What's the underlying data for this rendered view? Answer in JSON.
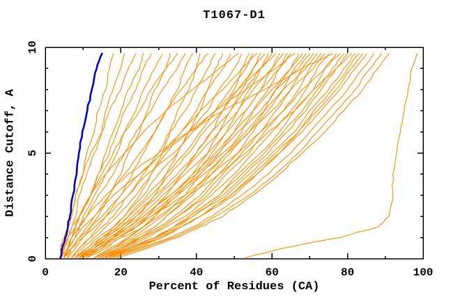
{
  "chart_data": {
    "type": "line",
    "title": "T1067-D1",
    "xlabel": "Percent of Residues (CA)",
    "ylabel": "Distance Cutoff, A",
    "xlim": [
      0,
      100
    ],
    "ylim": [
      0,
      10
    ],
    "grid": false,
    "legend": "none",
    "x_major_ticks": [
      0,
      20,
      40,
      60,
      80,
      100
    ],
    "x_minor_ticks": [
      10,
      30,
      50,
      70,
      90
    ],
    "y_major_ticks": [
      0,
      5,
      10
    ],
    "y_minor_ticks": [
      1,
      2,
      3,
      4,
      6,
      7,
      8,
      9
    ],
    "colors": {
      "models": "#ff8c00",
      "highlight": "#0000cd",
      "frame": "#000000",
      "background": "#ffffff"
    },
    "cutoffs": [
      0.05,
      0.5,
      1,
      1.5,
      2,
      3,
      4,
      5,
      6,
      7,
      8,
      9,
      9.7
    ],
    "highlight_series": {
      "name": "highlighted-model",
      "percents": [
        4,
        4.5,
        5.3,
        6,
        6.5,
        7.3,
        8.3,
        8.9,
        9.8,
        11.1,
        12.3,
        13.6,
        15
      ]
    },
    "model_series": [
      [
        4,
        5,
        5,
        6,
        7,
        8,
        10,
        11,
        13,
        14,
        16,
        17,
        18
      ],
      [
        4,
        5,
        6,
        7,
        8,
        9,
        11,
        13,
        15,
        16,
        18,
        20,
        21
      ],
      [
        4,
        4,
        5,
        6,
        7,
        8,
        10,
        12,
        15,
        17,
        20,
        22,
        24
      ],
      [
        5,
        6,
        7,
        8,
        9,
        12,
        14,
        16,
        18,
        20,
        22,
        25,
        26
      ],
      [
        5,
        5,
        6,
        8,
        9,
        12,
        14,
        17,
        19,
        21,
        24,
        26,
        28
      ],
      [
        6,
        6,
        8,
        9,
        10,
        13,
        16,
        19,
        21,
        24,
        26,
        29,
        31
      ],
      [
        6,
        8,
        10,
        12,
        14,
        17,
        20,
        22,
        25,
        27,
        29,
        32,
        33
      ],
      [
        5,
        6,
        7,
        8,
        9,
        12,
        15,
        18,
        21,
        25,
        28,
        32,
        35
      ],
      [
        5,
        6,
        7,
        9,
        11,
        14,
        18,
        21,
        24,
        28,
        31,
        35,
        37
      ],
      [
        7,
        9,
        12,
        14,
        16,
        20,
        23,
        26,
        29,
        32,
        35,
        37,
        39
      ],
      [
        9,
        13,
        16,
        18,
        21,
        25,
        28,
        31,
        33,
        35,
        38,
        40,
        41
      ],
      [
        6,
        7,
        9,
        11,
        13,
        17,
        21,
        25,
        29,
        32,
        36,
        40,
        43
      ],
      [
        7,
        9,
        12,
        15,
        18,
        22,
        26,
        30,
        33,
        37,
        40,
        43,
        45
      ],
      [
        11,
        15,
        18,
        21,
        24,
        29,
        32,
        35,
        38,
        41,
        43,
        45,
        47
      ],
      [
        7,
        10,
        13,
        16,
        19,
        24,
        28,
        32,
        36,
        40,
        43,
        47,
        49
      ],
      [
        5,
        5,
        6,
        7,
        9,
        12,
        16,
        21,
        26,
        32,
        39,
        46,
        51
      ],
      [
        8,
        11,
        14,
        18,
        21,
        26,
        30,
        35,
        38,
        43,
        46,
        50,
        52
      ],
      [
        11,
        16,
        20,
        24,
        27,
        32,
        36,
        40,
        44,
        47,
        50,
        52,
        54
      ],
      [
        9,
        12,
        15,
        19,
        22,
        27,
        32,
        37,
        41,
        45,
        49,
        53,
        55
      ],
      [
        5,
        7,
        9,
        12,
        15,
        20,
        25,
        31,
        36,
        41,
        47,
        52,
        56
      ],
      [
        13,
        18,
        22,
        26,
        29,
        34,
        39,
        43,
        46,
        49,
        52,
        55,
        57
      ],
      [
        8,
        11,
        15,
        19,
        22,
        28,
        33,
        38,
        42,
        47,
        51,
        55,
        58
      ],
      [
        13,
        17,
        22,
        26,
        29,
        35,
        40,
        44,
        48,
        51,
        54,
        57,
        59
      ],
      [
        9,
        12,
        16,
        20,
        23,
        29,
        35,
        40,
        44,
        49,
        53,
        57,
        60
      ],
      [
        5,
        7,
        10,
        13,
        16,
        22,
        27,
        34,
        39,
        45,
        51,
        57,
        61
      ],
      [
        13,
        18,
        23,
        27,
        31,
        37,
        41,
        46,
        50,
        53,
        57,
        60,
        62
      ],
      [
        8,
        12,
        16,
        20,
        24,
        30,
        36,
        41,
        46,
        51,
        55,
        60,
        63
      ],
      [
        14,
        19,
        25,
        29,
        32,
        38,
        43,
        48,
        52,
        55,
        59,
        62,
        64
      ],
      [
        9,
        13,
        17,
        21,
        25,
        31,
        37,
        43,
        48,
        53,
        57,
        62,
        65
      ],
      [
        5,
        6,
        8,
        10,
        13,
        18,
        25,
        31,
        38,
        45,
        53,
        61,
        66
      ],
      [
        13,
        18,
        24,
        29,
        32,
        39,
        44,
        49,
        54,
        58,
        61,
        65,
        67
      ],
      [
        9,
        13,
        18,
        22,
        26,
        33,
        39,
        45,
        50,
        55,
        60,
        65,
        68
      ],
      [
        14,
        20,
        25,
        30,
        34,
        41,
        46,
        51,
        55,
        59,
        63,
        66,
        69
      ],
      [
        9,
        13,
        17,
        22,
        26,
        33,
        40,
        46,
        51,
        57,
        61,
        67,
        70
      ],
      [
        14,
        20,
        26,
        31,
        35,
        42,
        47,
        52,
        57,
        61,
        65,
        68,
        71
      ],
      [
        10,
        14,
        18,
        23,
        27,
        34,
        41,
        47,
        53,
        58,
        63,
        69,
        72
      ],
      [
        14,
        20,
        26,
        31,
        35,
        43,
        48,
        54,
        58,
        63,
        67,
        70,
        73
      ],
      [
        10,
        14,
        19,
        24,
        28,
        35,
        42,
        48,
        54,
        60,
        65,
        71,
        74
      ],
      [
        15,
        21,
        27,
        32,
        37,
        44,
        50,
        55,
        60,
        65,
        69,
        72,
        75
      ],
      [
        5,
        6,
        7,
        9,
        11,
        16,
        22,
        30,
        38,
        47,
        58,
        68,
        76
      ],
      [
        16,
        22,
        29,
        34,
        38,
        46,
        51,
        57,
        62,
        66,
        71,
        74,
        77
      ],
      [
        9,
        14,
        19,
        24,
        28,
        37,
        44,
        51,
        57,
        63,
        68,
        74,
        78
      ],
      [
        15,
        22,
        29,
        34,
        38,
        46,
        52,
        58,
        63,
        68,
        72,
        76,
        79
      ],
      [
        16,
        22,
        29,
        34,
        39,
        47,
        53,
        59,
        64,
        69,
        73,
        77,
        80
      ],
      [
        10,
        15,
        20,
        26,
        30,
        38,
        46,
        53,
        59,
        66,
        71,
        77,
        81
      ],
      [
        15,
        22,
        29,
        35,
        39,
        48,
        54,
        60,
        66,
        70,
        75,
        79,
        82
      ],
      [
        17,
        24,
        31,
        36,
        41,
        49,
        55,
        61,
        67,
        71,
        76,
        80,
        83
      ],
      [
        16,
        23,
        30,
        36,
        41,
        49,
        56,
        62,
        67,
        72,
        77,
        81,
        84
      ],
      [
        16,
        23,
        31,
        36,
        41,
        50,
        56,
        62,
        68,
        73,
        78,
        82,
        85
      ],
      [
        17,
        25,
        33,
        39,
        44,
        52,
        59,
        65,
        70,
        75,
        80,
        84,
        87
      ],
      [
        18,
        26,
        34,
        40,
        45,
        54,
        61,
        67,
        72,
        77,
        82,
        86,
        89
      ],
      [
        19,
        27,
        35,
        41,
        47,
        55,
        62,
        68,
        74,
        79,
        84,
        88,
        91
      ],
      [
        53,
        63,
        78,
        88,
        91,
        92,
        92,
        93,
        94,
        95,
        96,
        97,
        98.5
      ]
    ]
  }
}
